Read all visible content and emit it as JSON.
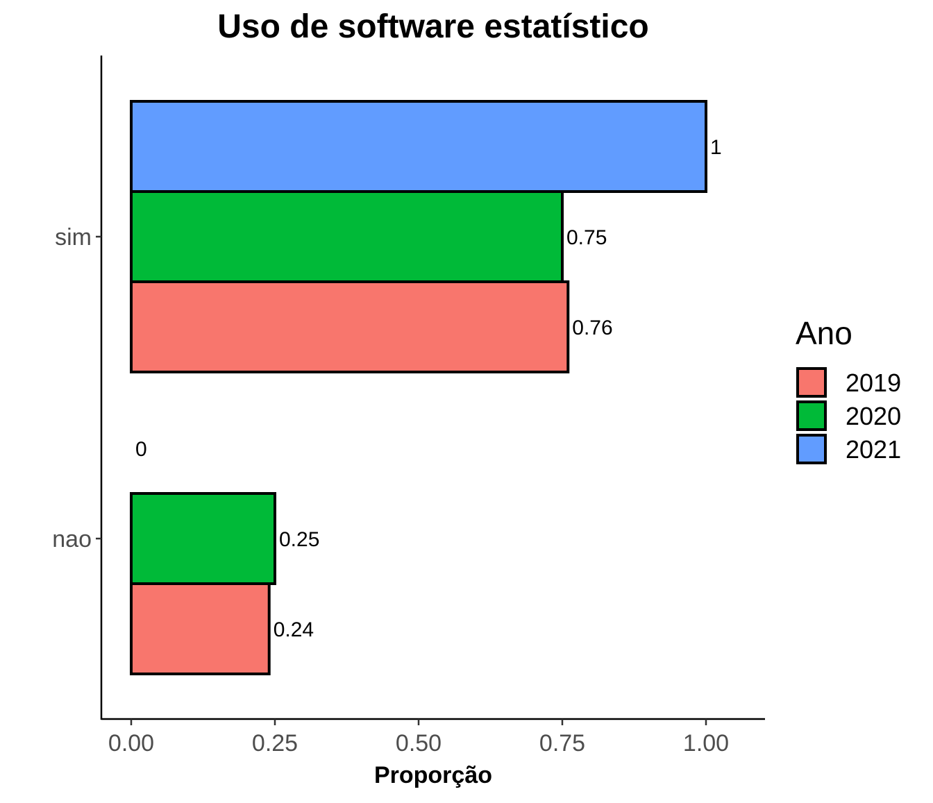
{
  "chart_data": {
    "type": "bar",
    "orientation": "horizontal",
    "title": "Uso de software estatístico",
    "xlabel": "Proporção",
    "ylabel": "",
    "categories": [
      "sim",
      "nao"
    ],
    "series": [
      {
        "name": "2019",
        "color": "#F8766D",
        "values": [
          0.76,
          0.24
        ],
        "labels": [
          "0.76",
          "0.24"
        ]
      },
      {
        "name": "2020",
        "color": "#00BA38",
        "values": [
          0.75,
          0.25
        ],
        "labels": [
          "0.75",
          "0.25"
        ]
      },
      {
        "name": "2021",
        "color": "#619CFF",
        "values": [
          1,
          0
        ],
        "labels": [
          "1",
          "0"
        ]
      }
    ],
    "xlim": [
      0,
      1
    ],
    "xticks": [
      0,
      0.25,
      0.5,
      0.75,
      1
    ],
    "xtick_labels": [
      "0.00",
      "0.25",
      "0.50",
      "0.75",
      "1.00"
    ],
    "grid": false,
    "legend": {
      "title": "Ano",
      "position": "right"
    }
  }
}
